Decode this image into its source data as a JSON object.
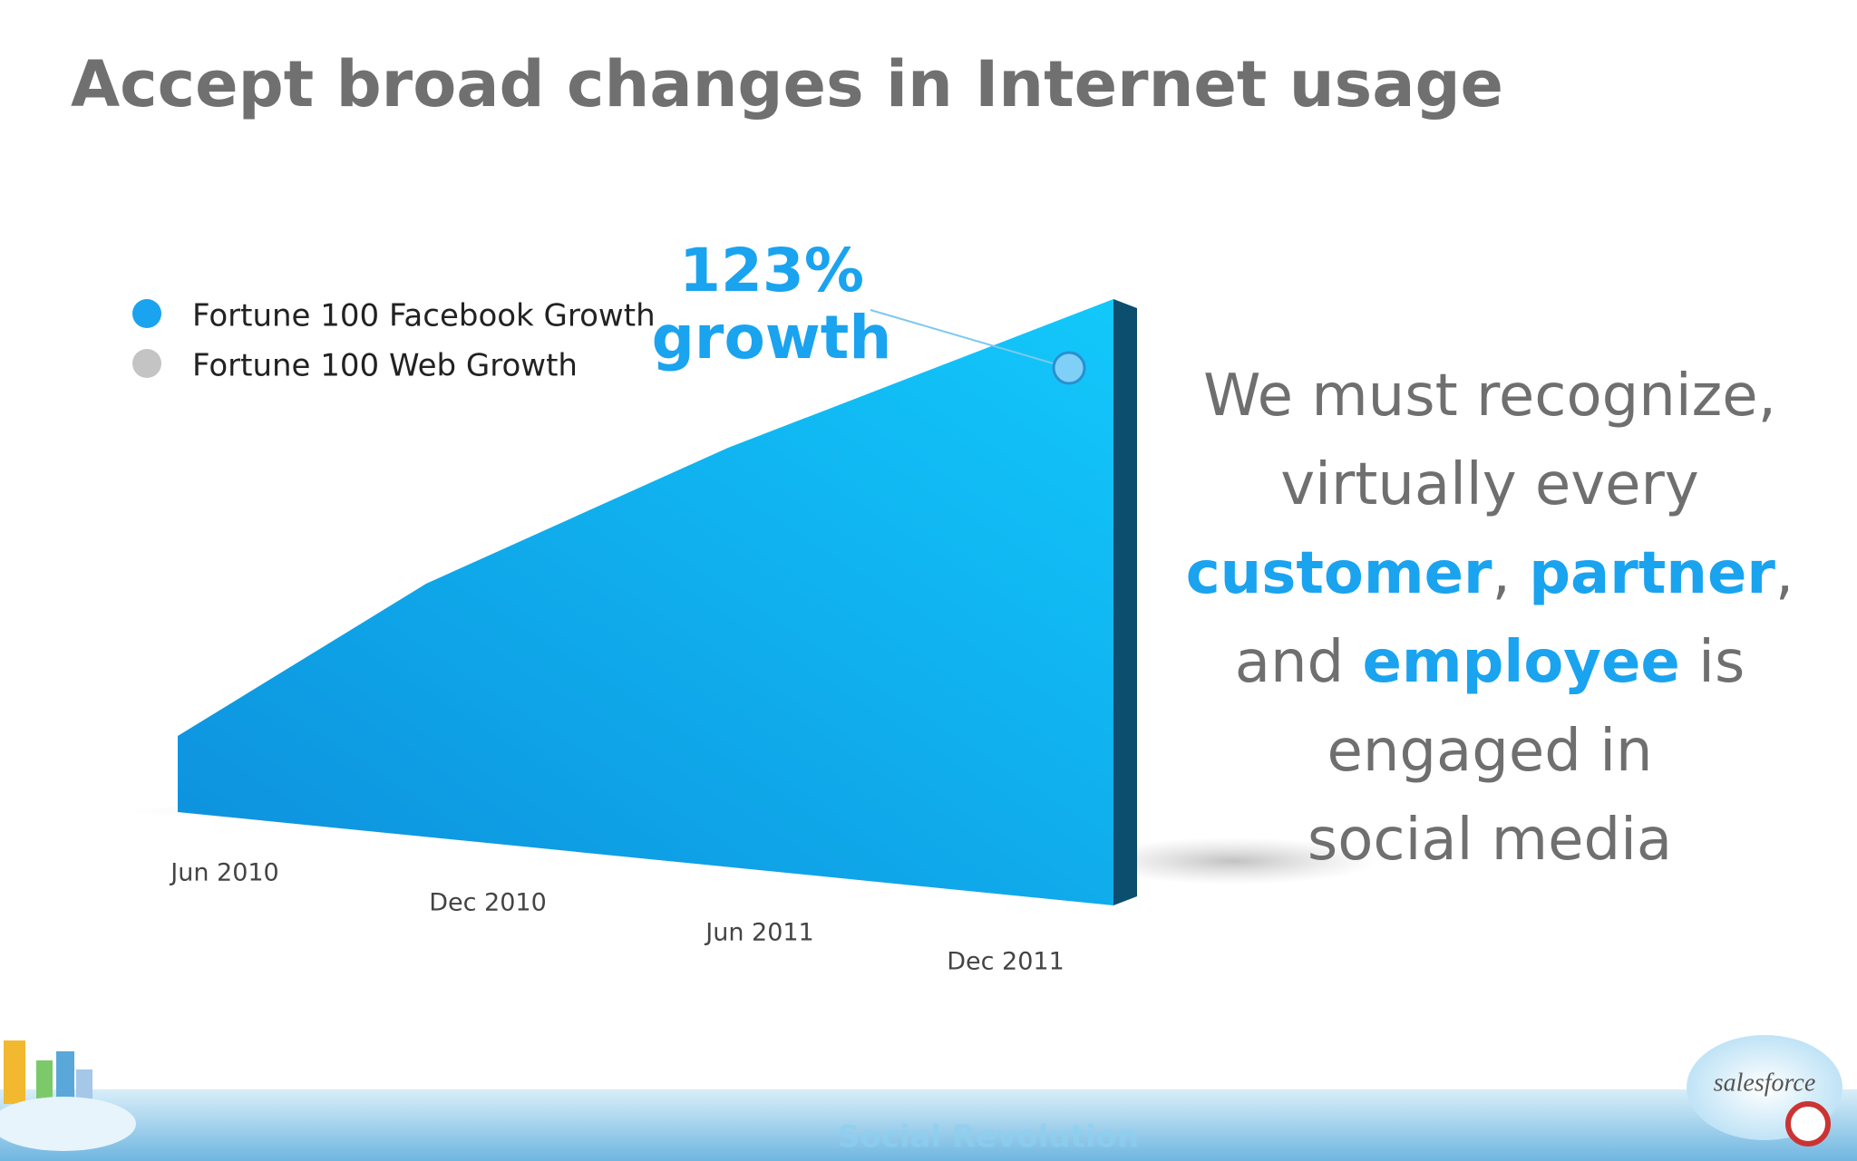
{
  "header": {
    "title": "Accept broad changes in Internet usage"
  },
  "legend": [
    {
      "label": "Fortune 100 Facebook Growth",
      "color": "#1aa3ef"
    },
    {
      "label": "Fortune 100 Web Growth",
      "color": "#c4c4c4"
    }
  ],
  "axis_labels": [
    "Jun 2010",
    "Dec 2010",
    "Jun 2011",
    "Dec 2011"
  ],
  "annotation": {
    "value": "123%",
    "text": "growth"
  },
  "statement": [
    [
      {
        "text": "We must recognize,",
        "highlight": false
      }
    ],
    [
      {
        "text": "virtually every",
        "highlight": false
      }
    ],
    [
      {
        "text": "customer",
        "highlight": true
      },
      {
        "text": ", ",
        "highlight": false
      },
      {
        "text": "partner",
        "highlight": true
      },
      {
        "text": ",",
        "highlight": false
      }
    ],
    [
      {
        "text": "and ",
        "highlight": false
      },
      {
        "text": "employee",
        "highlight": true
      },
      {
        "text": " is",
        "highlight": false
      }
    ],
    [
      {
        "text": "engaged in",
        "highlight": false
      }
    ],
    [
      {
        "text": "social media",
        "highlight": false
      }
    ]
  ],
  "footer": {
    "caption": "Social Revolution",
    "brand": "salesforce"
  }
}
